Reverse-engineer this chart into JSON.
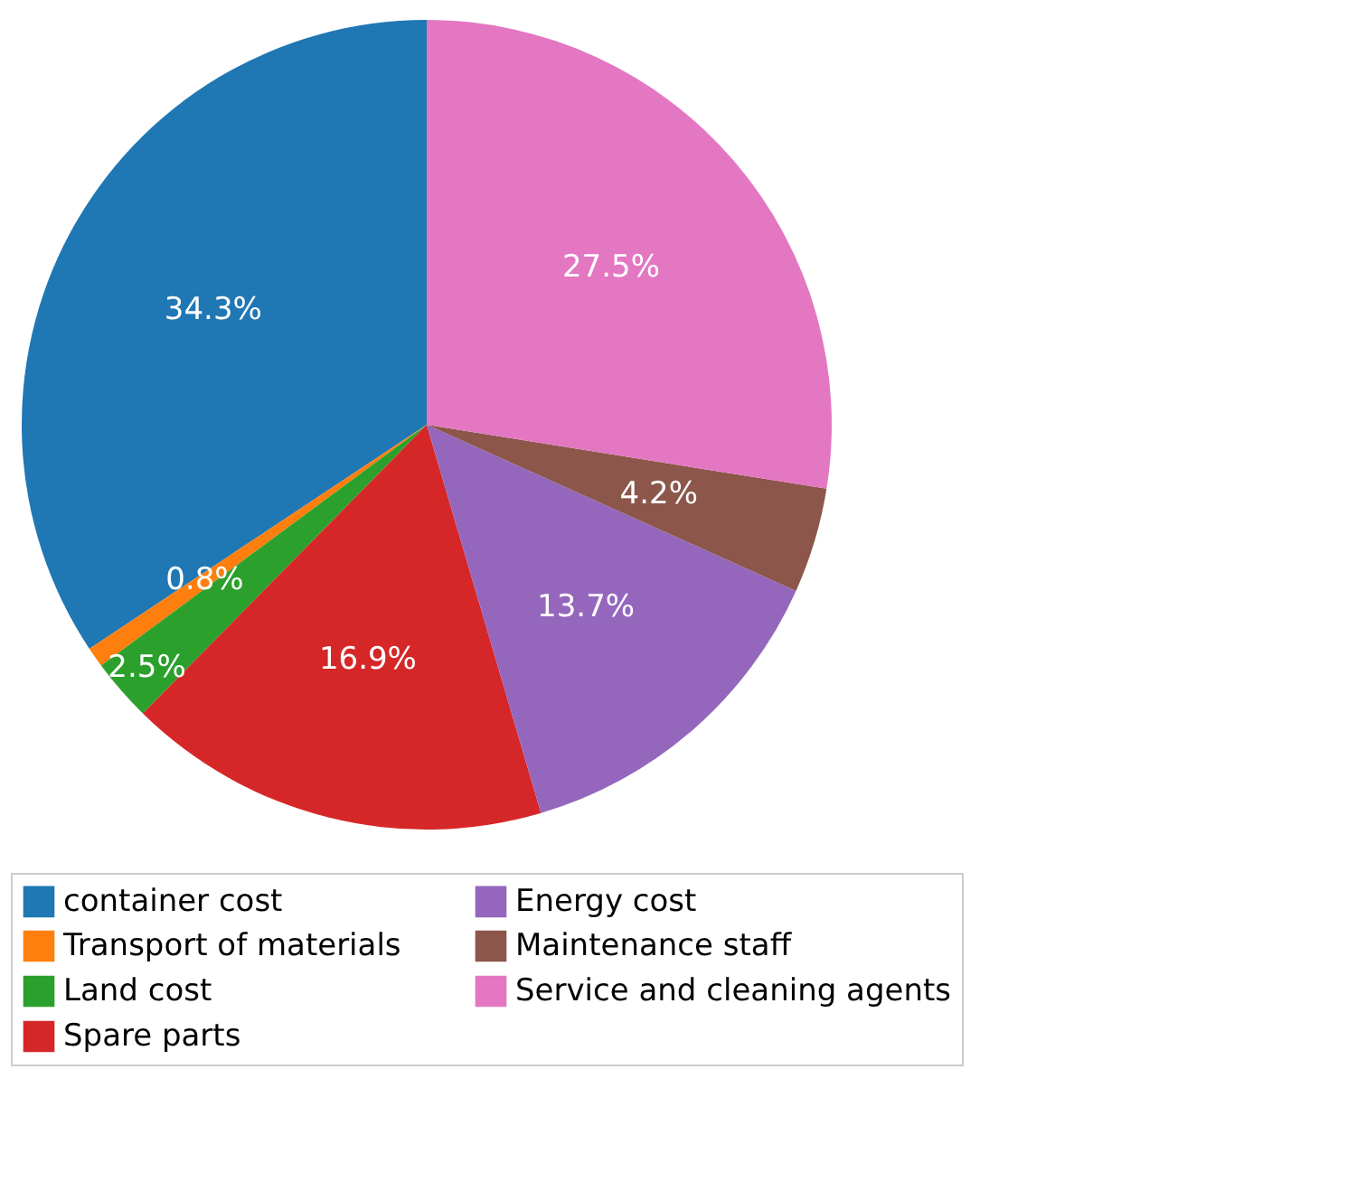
{
  "chart_data": {
    "type": "pie",
    "categories": [
      "container cost",
      "Transport of materials",
      "Land cost",
      "Spare parts",
      "Energy cost",
      "Maintenance staff",
      "Service and cleaning agents"
    ],
    "values": [
      34.3,
      0.8,
      2.5,
      16.9,
      13.7,
      4.2,
      27.5
    ],
    "colors": [
      "#1f77b4",
      "#ff7f0e",
      "#2ca02c",
      "#d62728",
      "#9467bd",
      "#8c564b",
      "#e377c2"
    ],
    "value_labels": [
      "34.3%",
      "0.8%",
      "2.5%",
      "16.9%",
      "13.7%",
      "4.2%",
      "27.5%"
    ],
    "legend": "bottom"
  }
}
